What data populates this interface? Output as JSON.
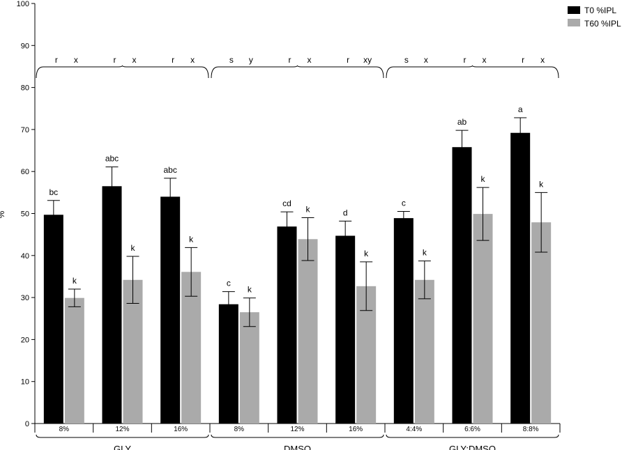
{
  "chart_data": {
    "type": "bar",
    "ylabel": "%",
    "ylim": [
      0,
      100
    ],
    "yticks": [
      0,
      10,
      20,
      30,
      40,
      50,
      60,
      70,
      80,
      90,
      100
    ],
    "categories": [
      "8%",
      "12%",
      "16%",
      "8%",
      "12%",
      "16%",
      "4:4%",
      "6:6%",
      "8:8%"
    ],
    "groups": [
      {
        "name": "GLY",
        "start": 0,
        "count": 3
      },
      {
        "name": "DMSO",
        "start": 3,
        "count": 3
      },
      {
        "name": "GLY:DMSO",
        "start": 6,
        "count": 3
      }
    ],
    "series": [
      {
        "name": "T0 %IPL",
        "color": "#000000",
        "values": [
          49.7,
          56.5,
          54.0,
          28.4,
          46.9,
          44.7,
          48.9,
          65.8,
          69.2
        ],
        "errors": [
          3.4,
          4.6,
          4.4,
          3.0,
          3.5,
          3.5,
          1.6,
          4.0,
          3.6
        ],
        "labels": [
          "bc",
          "abc",
          "abc",
          "c",
          "cd",
          "d",
          "c",
          "ab",
          "a"
        ]
      },
      {
        "name": "T60 %IPL",
        "color": "#aaaaaa",
        "values": [
          29.9,
          34.2,
          36.1,
          26.5,
          43.9,
          32.7,
          34.2,
          49.9,
          47.9
        ],
        "errors": [
          2.1,
          5.6,
          5.8,
          3.4,
          5.1,
          5.8,
          4.5,
          6.3,
          7.1
        ],
        "labels": [
          "k",
          "k",
          "k",
          "k",
          "k",
          "k",
          "k",
          "k",
          "k"
        ]
      }
    ],
    "top_annotations": [
      [
        "r",
        "x"
      ],
      [
        "r",
        "x"
      ],
      [
        "r",
        "x"
      ],
      [
        "s",
        "y"
      ],
      [
        "r",
        "x"
      ],
      [
        "r",
        "xy"
      ],
      [
        "s",
        "x"
      ],
      [
        "r",
        "x"
      ],
      [
        "r",
        "x"
      ]
    ],
    "legend_position": "top-right",
    "grid": false
  }
}
